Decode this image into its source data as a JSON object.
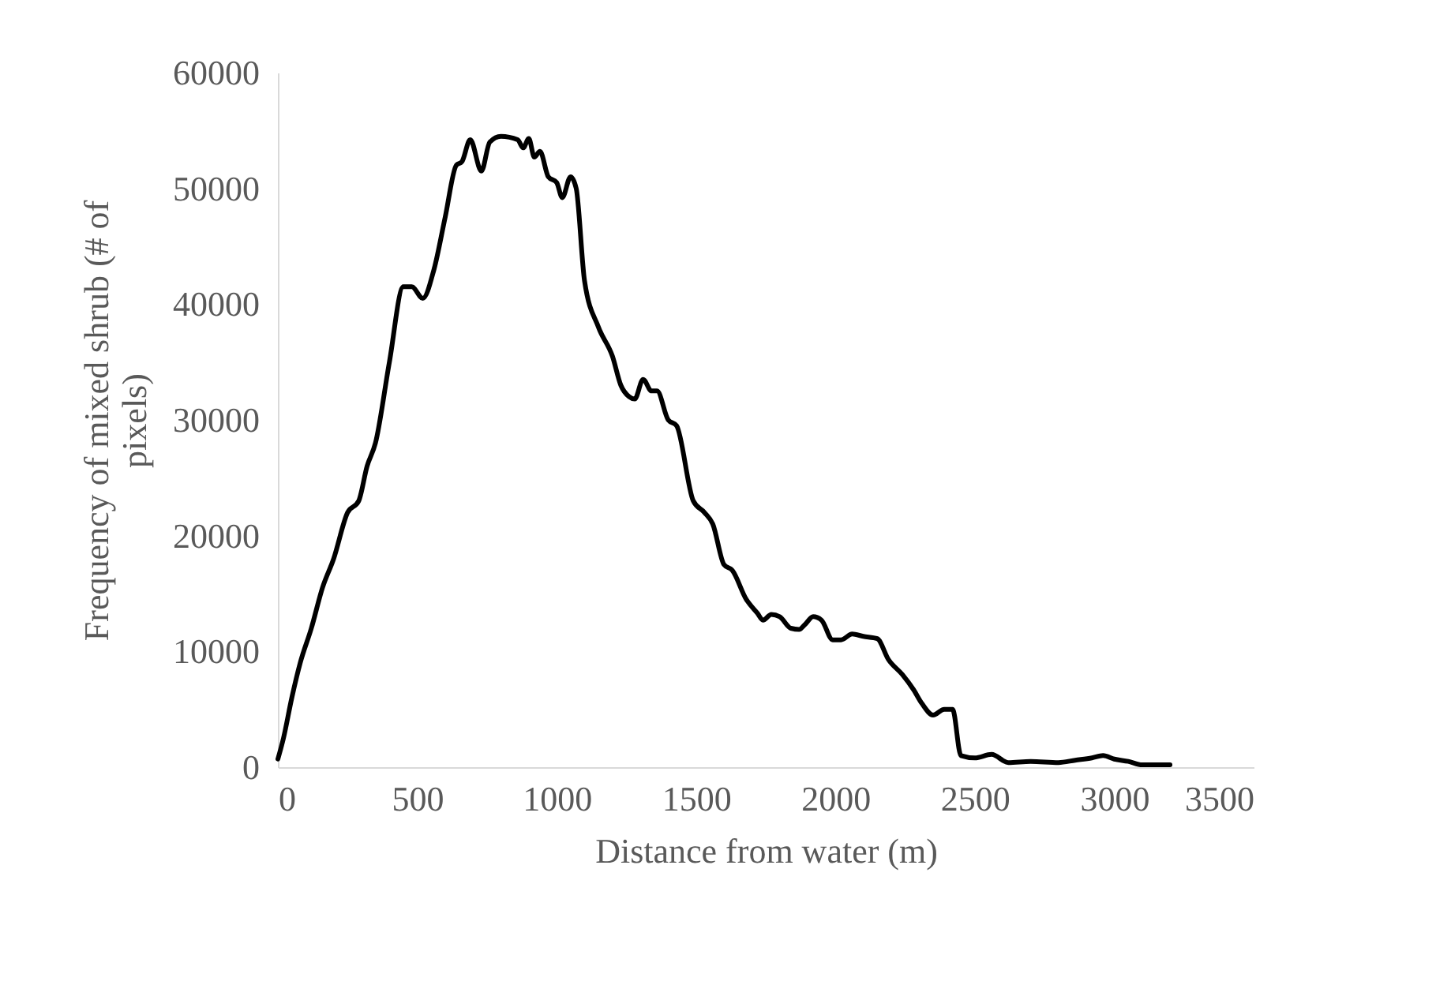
{
  "chart_data": {
    "type": "line",
    "xlabel": "Distance from water (m)",
    "ylabel": "Frequency of mixed shrub (# of pixels)",
    "x": [
      0,
      20,
      50,
      80,
      120,
      160,
      200,
      250,
      290,
      320,
      350,
      400,
      450,
      480,
      520,
      560,
      600,
      640,
      660,
      690,
      730,
      760,
      800,
      860,
      880,
      900,
      920,
      940,
      970,
      1000,
      1020,
      1050,
      1070,
      1100,
      1150,
      1200,
      1230,
      1260,
      1280,
      1310,
      1340,
      1360,
      1400,
      1430,
      1490,
      1530,
      1560,
      1600,
      1630,
      1680,
      1720,
      1740,
      1770,
      1800,
      1840,
      1870,
      1890,
      1920,
      1950,
      1990,
      2020,
      2060,
      2100,
      2150,
      2190,
      2240,
      2280,
      2310,
      2350,
      2390,
      2420,
      2450,
      2500,
      2560,
      2620,
      2700,
      2800,
      2860,
      2920,
      2960,
      3000,
      3050,
      3100,
      3200
    ],
    "series": [
      {
        "color": "#000000",
        "values": [
          700,
          2500,
          6000,
          9000,
          12000,
          15500,
          18000,
          22000,
          23000,
          26000,
          28000,
          35000,
          41500,
          41500,
          40500,
          43000,
          47500,
          52000,
          52300,
          54200,
          51500,
          54000,
          54500,
          54200,
          53500,
          54300,
          52700,
          53200,
          51000,
          50500,
          49200,
          51000,
          50000,
          42000,
          38000,
          35500,
          33000,
          32000,
          31800,
          33500,
          32500,
          32500,
          30000,
          29500,
          23000,
          22000,
          21000,
          17500,
          17000,
          14500,
          13300,
          12700,
          13200,
          13000,
          12000,
          11900,
          12300,
          13000,
          12700,
          11000,
          11000,
          11500,
          11300,
          11100,
          9300,
          8000,
          6700,
          5500,
          4500,
          5000,
          5000,
          1000,
          800,
          1100,
          400,
          500,
          400,
          600,
          800,
          1000,
          700,
          500,
          200,
          200
        ]
      }
    ],
    "xlim": [
      0,
      3500
    ],
    "xticks": [
      0,
      500,
      1000,
      1500,
      2000,
      2500,
      3000,
      3500
    ],
    "ylim": [
      0,
      60000
    ],
    "yticks": [
      0,
      10000,
      20000,
      30000,
      40000,
      50000,
      60000
    ],
    "grid": false,
    "marker": "none",
    "line_style": "solid"
  }
}
